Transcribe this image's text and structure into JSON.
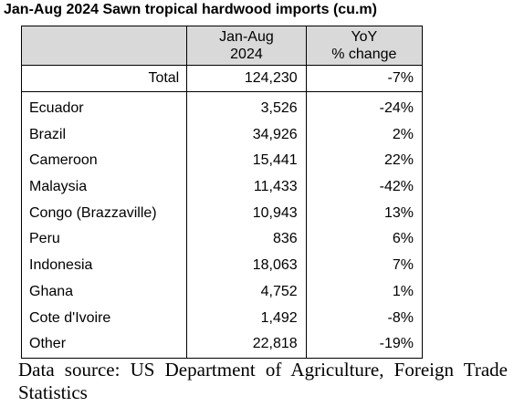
{
  "title": "Jan-Aug 2024 Sawn tropical hardwood imports (cu.m)",
  "columns": {
    "jan_aug_line1": "Jan-Aug",
    "jan_aug_line2": "2024",
    "yoy_line1": "YoY",
    "yoy_line2": "% change"
  },
  "total": {
    "label": "Total",
    "volume": "124,230",
    "yoy": "-7%"
  },
  "rows": [
    {
      "country": "Ecuador",
      "volume": "3,526",
      "yoy": "-24%"
    },
    {
      "country": "Brazil",
      "volume": "34,926",
      "yoy": "2%"
    },
    {
      "country": "Cameroon",
      "volume": "15,441",
      "yoy": "22%"
    },
    {
      "country": "Malaysia",
      "volume": "11,433",
      "yoy": "-42%"
    },
    {
      "country": "Congo (Brazzaville)",
      "volume": "10,943",
      "yoy": "13%"
    },
    {
      "country": "Peru",
      "volume": "836",
      "yoy": "6%"
    },
    {
      "country": "Indonesia",
      "volume": "18,063",
      "yoy": "7%"
    },
    {
      "country": "Ghana",
      "volume": "4,752",
      "yoy": "1%"
    },
    {
      "country": "Cote d'Ivoire",
      "volume": "1,492",
      "yoy": "-8%"
    },
    {
      "country": "Other",
      "volume": "22,818",
      "yoy": "-19%"
    }
  ],
  "source": "Data source: US Department of Agriculture, Foreign Trade Statistics",
  "colors": {
    "header_fill": "#d9d9d9",
    "border": "#000000"
  },
  "chart_data": {
    "type": "table",
    "title": "Jan-Aug 2024 Sawn tropical hardwood imports (cu.m)",
    "columns": [
      "Jan-Aug 2024",
      "YoY % change"
    ],
    "total": {
      "volume": 124230,
      "yoy_pct": -7
    },
    "categories": [
      "Ecuador",
      "Brazil",
      "Cameroon",
      "Malaysia",
      "Congo (Brazzaville)",
      "Peru",
      "Indonesia",
      "Ghana",
      "Cote d'Ivoire",
      "Other"
    ],
    "series": [
      {
        "name": "Jan-Aug 2024",
        "values": [
          3526,
          34926,
          15441,
          11433,
          10943,
          836,
          18063,
          4752,
          1492,
          22818
        ]
      },
      {
        "name": "YoY % change",
        "values": [
          -24,
          2,
          22,
          -42,
          13,
          6,
          7,
          1,
          -8,
          -19
        ]
      }
    ]
  }
}
